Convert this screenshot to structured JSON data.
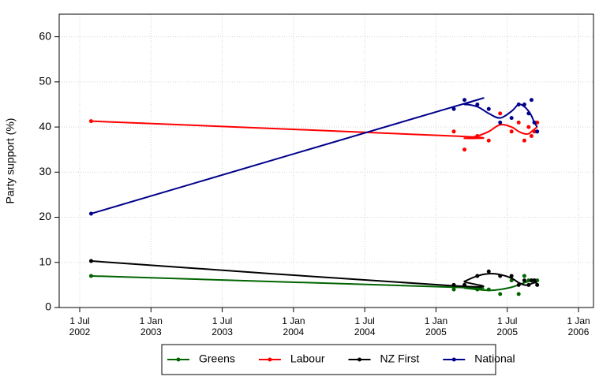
{
  "chart_data": {
    "type": "line",
    "ylabel": "Party support (%)",
    "x": [
      2002.58,
      2005.125,
      2005.2,
      2005.29,
      2005.37,
      2005.45,
      2005.53,
      2005.58,
      2005.62,
      2005.65,
      2005.67,
      2005.69,
      2005.71
    ],
    "series": [
      {
        "name": "Greens",
        "color": "#006400",
        "values": [
          7,
          4,
          5,
          4,
          4,
          3,
          6,
          3,
          7,
          6,
          6,
          6,
          6
        ],
        "trend": [
          7,
          4.5,
          4.3,
          4,
          3.8,
          4,
          4.5,
          5,
          5.5,
          5.8,
          6,
          6,
          5.8
        ]
      },
      {
        "name": "Labour",
        "color": "#ff0000",
        "values": [
          41.3,
          39,
          35,
          38,
          37,
          43,
          39,
          41,
          37,
          40,
          38,
          39,
          41
        ],
        "trend": [
          41.3,
          38,
          37.5,
          38,
          39,
          40.5,
          40,
          39,
          38.5,
          38.5,
          39,
          39.5,
          40
        ]
      },
      {
        "name": "NZ First",
        "color": "#000000",
        "values": [
          10.3,
          5,
          5,
          7,
          8,
          7,
          7,
          5,
          6,
          5,
          6,
          6,
          5
        ],
        "trend": [
          10.3,
          4.8,
          5.8,
          7,
          7.5,
          7.3,
          6.5,
          5.5,
          5,
          5,
          5.3,
          5.5,
          5.5
        ]
      },
      {
        "name": "National",
        "color": "#00008b",
        "values": [
          20.8,
          44,
          46,
          45,
          44,
          41,
          42,
          45,
          45,
          43,
          46,
          41,
          39
        ],
        "trend": [
          20.8,
          44.5,
          45,
          44.5,
          43,
          42,
          43.5,
          45,
          44.5,
          43.5,
          42.5,
          41,
          40
        ]
      }
    ],
    "xlim": [
      2002.356,
      2006.105
    ],
    "xticks": [
      {
        "value": 2002.5,
        "label": [
          "1 Jul",
          "2002"
        ]
      },
      {
        "value": 2003.0,
        "label": [
          "1 Jan",
          "2003"
        ]
      },
      {
        "value": 2003.5,
        "label": [
          "1 Jul",
          "2003"
        ]
      },
      {
        "value": 2004.0,
        "label": [
          "1 Jan",
          "2004"
        ]
      },
      {
        "value": 2004.5,
        "label": [
          "1 Jul",
          "2004"
        ]
      },
      {
        "value": 2005.0,
        "label": [
          "1 Jan",
          "2005"
        ]
      },
      {
        "value": 2005.5,
        "label": [
          "1 Jul",
          "2005"
        ]
      },
      {
        "value": 2006.0,
        "label": [
          "1 Jan",
          "2006"
        ]
      }
    ],
    "ylim": [
      0,
      65
    ],
    "yticks": [
      0,
      10,
      20,
      30,
      40,
      50,
      60
    ],
    "grid": true,
    "legend": "bottom"
  }
}
